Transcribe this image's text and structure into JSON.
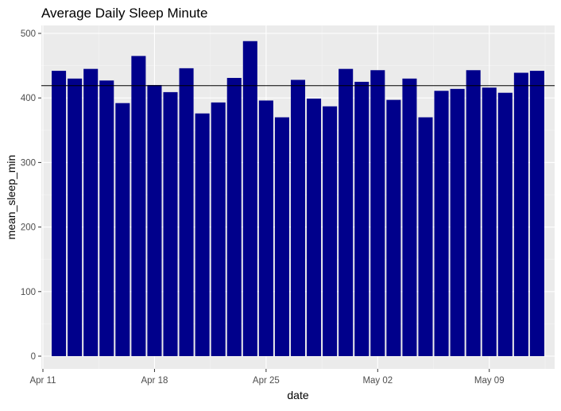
{
  "chart_data": {
    "type": "bar",
    "title": "Average Daily Sleep Minute",
    "xlabel": "date",
    "ylabel": "mean_sleep_min",
    "x_tick_labels": [
      {
        "date": "2016-04-11",
        "label": "Apr 11"
      },
      {
        "date": "2016-04-18",
        "label": "Apr 18"
      },
      {
        "date": "2016-04-25",
        "label": "Apr 25"
      },
      {
        "date": "2016-05-02",
        "label": "May 02"
      },
      {
        "date": "2016-05-09",
        "label": "May 09"
      }
    ],
    "y_ticks": [
      0,
      100,
      200,
      300,
      400,
      500
    ],
    "xlim": [
      "2016-04-11",
      "2016-05-13"
    ],
    "ylim": [
      0,
      500
    ],
    "reference_line": {
      "value": 419
    },
    "series": [
      {
        "color": "#00008b",
        "points": [
          {
            "date": "2016-04-12",
            "value": 442
          },
          {
            "date": "2016-04-13",
            "value": 430
          },
          {
            "date": "2016-04-14",
            "value": 445
          },
          {
            "date": "2016-04-15",
            "value": 427
          },
          {
            "date": "2016-04-16",
            "value": 392
          },
          {
            "date": "2016-04-17",
            "value": 465
          },
          {
            "date": "2016-04-18",
            "value": 420
          },
          {
            "date": "2016-04-19",
            "value": 409
          },
          {
            "date": "2016-04-20",
            "value": 446
          },
          {
            "date": "2016-04-21",
            "value": 376
          },
          {
            "date": "2016-04-22",
            "value": 393
          },
          {
            "date": "2016-04-23",
            "value": 431
          },
          {
            "date": "2016-04-24",
            "value": 488
          },
          {
            "date": "2016-04-25",
            "value": 396
          },
          {
            "date": "2016-04-26",
            "value": 370
          },
          {
            "date": "2016-04-27",
            "value": 428
          },
          {
            "date": "2016-04-28",
            "value": 399
          },
          {
            "date": "2016-04-29",
            "value": 387
          },
          {
            "date": "2016-04-30",
            "value": 445
          },
          {
            "date": "2016-05-01",
            "value": 425
          },
          {
            "date": "2016-05-02",
            "value": 443
          },
          {
            "date": "2016-05-03",
            "value": 397
          },
          {
            "date": "2016-05-04",
            "value": 430
          },
          {
            "date": "2016-05-05",
            "value": 370
          },
          {
            "date": "2016-05-06",
            "value": 411
          },
          {
            "date": "2016-05-07",
            "value": 414
          },
          {
            "date": "2016-05-08",
            "value": 443
          },
          {
            "date": "2016-05-09",
            "value": 416
          },
          {
            "date": "2016-05-10",
            "value": 408
          },
          {
            "date": "2016-05-11",
            "value": 439
          },
          {
            "date": "2016-05-12",
            "value": 442
          }
        ]
      }
    ],
    "grid": true,
    "legend": "none",
    "colors": {
      "panel_background": "#ebebeb",
      "grid_major": "#ffffff",
      "grid_minor": "#f5f5f5",
      "reference_line": "#000000",
      "tick_text": "#4d4d4d"
    }
  }
}
